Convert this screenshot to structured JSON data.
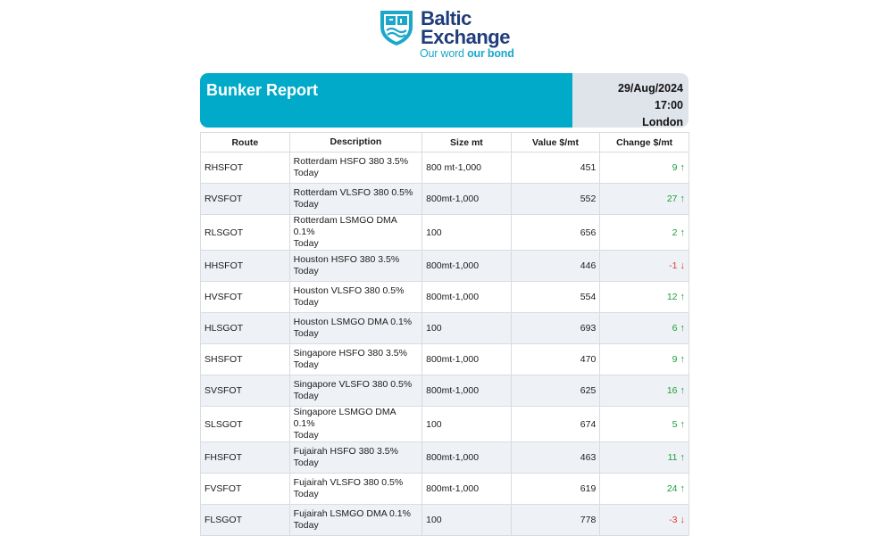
{
  "brand": {
    "name_line1": "Baltic",
    "name_line2": "Exchange",
    "tagline_light": "Our word ",
    "tagline_bold": "our bond",
    "colors": {
      "navy": "#1f3d7a",
      "teal": "#1aa7c9"
    },
    "icon": "shield-crest-icon"
  },
  "header": {
    "title": "Bunker Report",
    "date": "29/Aug/2024",
    "time": "17:00",
    "location": "London",
    "accent_color": "#00aac8"
  },
  "table": {
    "columns": [
      "Route",
      "Description",
      "Size mt",
      "Value $/mt",
      "Change $/mt"
    ],
    "rows": [
      {
        "route": "RHSFOT",
        "desc1": "Rotterdam HSFO 380 3.5%",
        "desc2": "Today",
        "size": "800 mt-1,000",
        "value": "451",
        "change": "9",
        "dir": "up"
      },
      {
        "route": "RVSFOT",
        "desc1": "Rotterdam VLSFO 380 0.5%",
        "desc2": "Today",
        "size": "800mt-1,000",
        "value": "552",
        "change": "27",
        "dir": "up"
      },
      {
        "route": "RLSGOT",
        "desc1": "Rotterdam LSMGO DMA 0.1%",
        "desc2": "Today",
        "size": "100",
        "value": "656",
        "change": "2",
        "dir": "up"
      },
      {
        "route": "HHSFOT",
        "desc1": "Houston HSFO 380 3.5%",
        "desc2": "Today",
        "size": "800mt-1,000",
        "value": "446",
        "change": "-1",
        "dir": "down"
      },
      {
        "route": "HVSFOT",
        "desc1": "Houston VLSFO 380 0.5%",
        "desc2": "Today",
        "size": "800mt-1,000",
        "value": "554",
        "change": "12",
        "dir": "up"
      },
      {
        "route": "HLSGOT",
        "desc1": "Houston LSMGO DMA 0.1%",
        "desc2": "Today",
        "size": "100",
        "value": "693",
        "change": "6",
        "dir": "up"
      },
      {
        "route": "SHSFOT",
        "desc1": "Singapore HSFO 380 3.5%",
        "desc2": "Today",
        "size": "800mt-1,000",
        "value": "470",
        "change": "9",
        "dir": "up"
      },
      {
        "route": "SVSFOT",
        "desc1": "Singapore VLSFO 380 0.5%",
        "desc2": "Today",
        "size": "800mt-1,000",
        "value": "625",
        "change": "16",
        "dir": "up"
      },
      {
        "route": "SLSGOT",
        "desc1": "Singapore LSMGO DMA 0.1%",
        "desc2": "Today",
        "size": "100",
        "value": "674",
        "change": "5",
        "dir": "up"
      },
      {
        "route": "FHSFOT",
        "desc1": "Fujairah HSFO 380 3.5%",
        "desc2": "Today",
        "size": "800mt-1,000",
        "value": "463",
        "change": "11",
        "dir": "up"
      },
      {
        "route": "FVSFOT",
        "desc1": "Fujairah VLSFO 380 0.5%",
        "desc2": "Today",
        "size": "800mt-1,000",
        "value": "619",
        "change": "24",
        "dir": "up"
      },
      {
        "route": "FLSGOT",
        "desc1": "Fujairah LSMGO DMA 0.1%",
        "desc2": "Today",
        "size": "100",
        "value": "778",
        "change": "-3",
        "dir": "down"
      }
    ],
    "arrow_up": "↑",
    "arrow_down": "↓",
    "colors": {
      "up": "#1e9e3a",
      "down": "#e23a2e"
    }
  }
}
